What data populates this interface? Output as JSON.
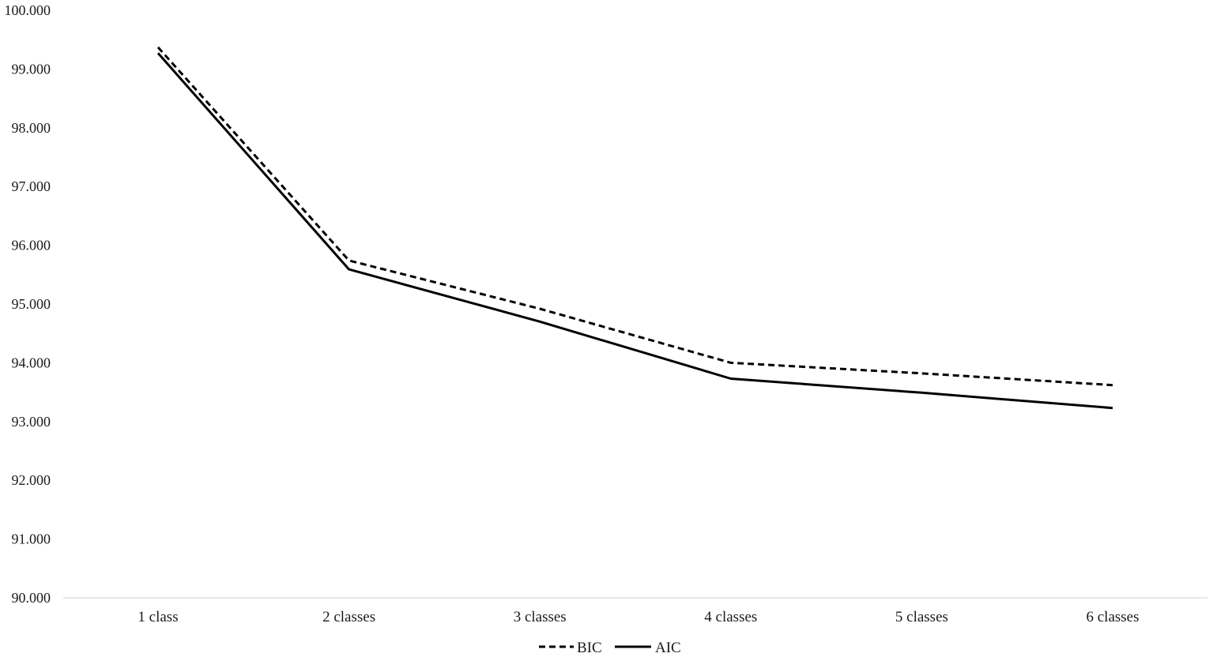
{
  "chart_data": {
    "type": "line",
    "categories": [
      "1 class",
      "2 classes",
      "3 classes",
      "4 classes",
      "5 classes",
      "6 classes"
    ],
    "series": [
      {
        "name": "BIC",
        "style": "dashed",
        "color": "#000000",
        "values": [
          99.37,
          95.74,
          94.92,
          94.0,
          93.82,
          93.62
        ]
      },
      {
        "name": "AIC",
        "style": "solid",
        "color": "#000000",
        "values": [
          99.27,
          95.59,
          94.7,
          93.73,
          93.49,
          93.23
        ]
      }
    ],
    "ylim": [
      90,
      100
    ],
    "yticks": [
      "90.000",
      "91.000",
      "92.000",
      "93.000",
      "94.000",
      "95.000",
      "96.000",
      "97.000",
      "98.000",
      "99.000",
      "100.000"
    ],
    "grid": false,
    "legend": "bottom-center"
  }
}
